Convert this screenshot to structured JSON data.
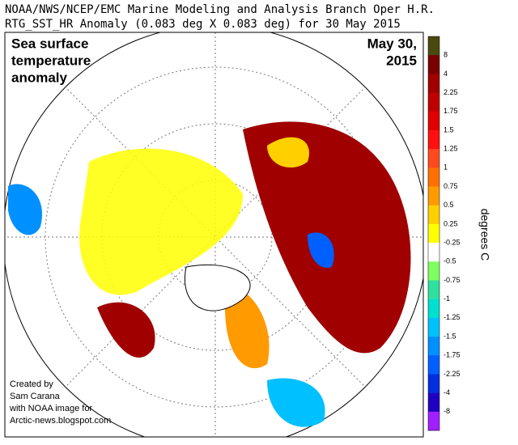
{
  "header": {
    "line1": "NOAA/NWS/NCEP/EMC Marine Modeling and Analysis Branch Oper H.R.",
    "line2": "RTG_SST_HR Anomaly (0.083 deg X 0.083 deg) for 30 May 2015"
  },
  "map": {
    "title": [
      "Sea surface",
      "temperature",
      "anomaly"
    ],
    "date": [
      "May 30,",
      "2015"
    ],
    "credit": [
      "Created by",
      "Sam Carana",
      "with NOAA image for",
      "Arctic-news.blogspot.com"
    ]
  },
  "colorbar": {
    "unit": "degrees C",
    "labels": [
      "8",
      "4",
      "2.25",
      "1.75",
      "1.5",
      "1.25",
      "1",
      "0.75",
      "0.5",
      "0.25",
      "-0.25",
      "-0.5",
      "-0.75",
      "-1",
      "-1.25",
      "-1.5",
      "-1.75",
      "-2.25",
      "-4",
      "-8"
    ],
    "colors": [
      "#4a4a10",
      "#7a0000",
      "#a00000",
      "#c00000",
      "#e00000",
      "#ff1010",
      "#ff4a20",
      "#ff7000",
      "#ff9a00",
      "#ffd000",
      "#ffff00",
      "#ffffff",
      "#80ff60",
      "#30e0a0",
      "#00e0d0",
      "#00c0ff",
      "#0090ff",
      "#0060ff",
      "#0030e0",
      "#2000c0",
      "#a020ff"
    ]
  }
}
